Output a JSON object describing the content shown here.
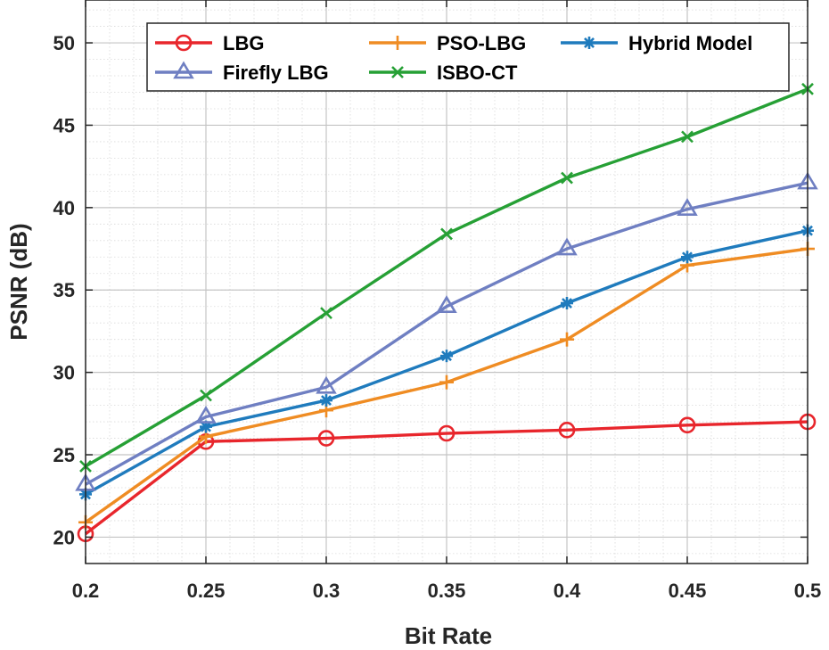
{
  "chart_data": {
    "type": "line",
    "title": "",
    "xlabel": "Bit Rate",
    "ylabel": "PSNR (dB)",
    "x": [
      0.2,
      0.25,
      0.3,
      0.35,
      0.4,
      0.45,
      0.5
    ],
    "x_tick_labels": [
      "0.2",
      "0.25",
      "0.3",
      "0.35",
      "0.4",
      "0.45",
      "0.5"
    ],
    "y_ticks": [
      20,
      25,
      30,
      35,
      40,
      45,
      50
    ],
    "xlim": [
      0.2,
      0.5
    ],
    "ylim": [
      18.4,
      52.6
    ],
    "grid": true,
    "minor_grid": true,
    "legend_position": "top",
    "series": [
      {
        "name": "LBG",
        "color": "#e8262c",
        "marker": "circle",
        "values": [
          20.2,
          25.8,
          26.0,
          26.3,
          26.5,
          26.8,
          27.0
        ]
      },
      {
        "name": "PSO-LBG",
        "color": "#ef8c23",
        "marker": "plus",
        "values": [
          20.9,
          26.1,
          27.7,
          29.4,
          32.0,
          36.5,
          37.5
        ]
      },
      {
        "name": "Hybrid Model",
        "color": "#1f7bbd",
        "marker": "asterisk",
        "values": [
          22.6,
          26.7,
          28.3,
          31.0,
          34.2,
          37.0,
          38.6
        ]
      },
      {
        "name": "Firefly LBG",
        "color": "#6f7fc2",
        "marker": "triangle",
        "values": [
          23.2,
          27.3,
          29.1,
          34.0,
          37.5,
          39.9,
          41.5
        ]
      },
      {
        "name": "ISBO-CT",
        "color": "#26a035",
        "marker": "x",
        "values": [
          24.3,
          28.6,
          33.6,
          38.4,
          41.8,
          44.3,
          47.2
        ]
      }
    ],
    "legend_order": [
      "LBG",
      "PSO-LBG",
      "Hybrid Model",
      "Firefly LBG",
      "ISBO-CT"
    ]
  }
}
